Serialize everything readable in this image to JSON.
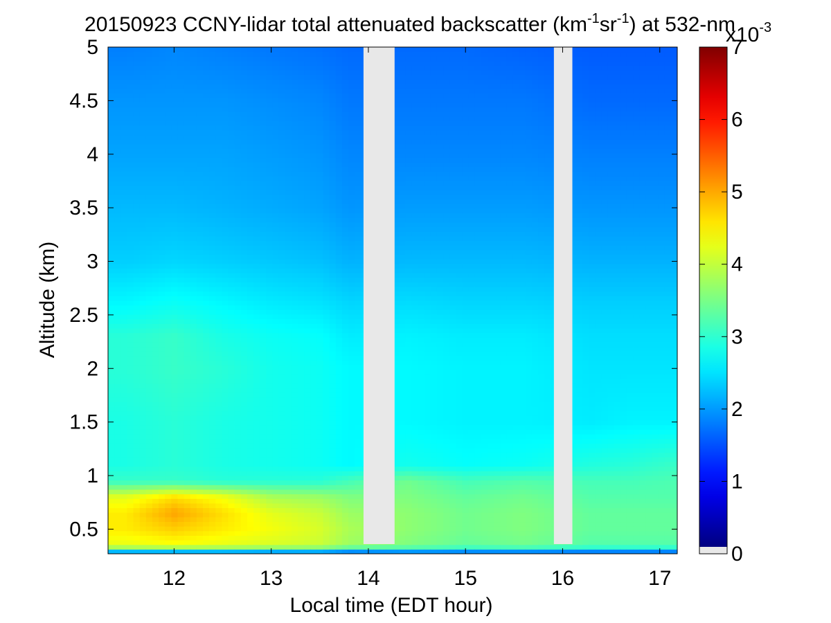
{
  "chart_data": {
    "type": "heatmap",
    "title_parts": {
      "prefix": "20150923 CCNY-lidar total attenuated backscatter (km",
      "sup1": "-1",
      "mid": "sr",
      "sup2": "-1",
      "suffix": ") at 532-nm"
    },
    "xlabel": "Local time (EDT hour)",
    "ylabel": "Altitude (km)",
    "xlim": [
      11.32,
      17.18
    ],
    "ylim": [
      0.27,
      5.0
    ],
    "xticks": [
      12,
      13,
      14,
      15,
      16,
      17
    ],
    "xtick_labels": [
      "12",
      "13",
      "14",
      "15",
      "16",
      "17"
    ],
    "yticks": [
      0.5,
      1,
      1.5,
      2,
      2.5,
      3,
      3.5,
      4,
      4.5,
      5
    ],
    "ytick_labels": [
      "0.5",
      "1",
      "1.5",
      "2",
      "2.5",
      "3",
      "3.5",
      "4",
      "4.5",
      "5"
    ],
    "data_gaps_hours": [
      [
        13.95,
        14.27
      ],
      [
        15.91,
        16.1
      ]
    ],
    "colorbar": {
      "colormap": "jet",
      "range": [
        0,
        7
      ],
      "ticks": [
        0,
        1,
        2,
        3,
        4,
        5,
        6,
        7
      ],
      "tick_labels": [
        "0",
        "1",
        "2",
        "3",
        "4",
        "5",
        "6",
        "7"
      ],
      "scale_prefix": "x10",
      "scale_exponent": "-3"
    },
    "profile_units": "x10^-3 km^-1 sr^-1",
    "altitude_levels_km": [
      0.27,
      0.3,
      0.35,
      0.5,
      0.65,
      0.8,
      0.95,
      1.1,
      1.5,
      2.0,
      2.3,
      2.6,
      3.0,
      3.5,
      4.0,
      4.5,
      5.0
    ],
    "sample_profiles": [
      {
        "time": 11.5,
        "backscatter": [
          0.0,
          3.0,
          4.2,
          4.5,
          4.5,
          4.2,
          3.0,
          2.8,
          2.8,
          2.9,
          2.9,
          2.6,
          2.3,
          2.15,
          2.0,
          1.9,
          1.75
        ]
      },
      {
        "time": 12.0,
        "backscatter": [
          0.0,
          3.0,
          4.3,
          4.7,
          5.0,
          4.6,
          3.0,
          2.9,
          2.9,
          3.0,
          3.0,
          2.7,
          2.35,
          2.15,
          2.0,
          1.9,
          1.8
        ]
      },
      {
        "time": 12.5,
        "backscatter": [
          0.0,
          3.0,
          4.2,
          4.5,
          4.6,
          4.3,
          2.9,
          2.8,
          2.8,
          2.9,
          2.8,
          2.6,
          2.3,
          2.1,
          2.0,
          1.9,
          1.75
        ]
      },
      {
        "time": 13.0,
        "backscatter": [
          0.0,
          2.9,
          4.1,
          4.3,
          4.2,
          3.8,
          2.9,
          2.75,
          2.75,
          2.75,
          2.7,
          2.5,
          2.25,
          2.05,
          1.95,
          1.85,
          1.7
        ]
      },
      {
        "time": 13.5,
        "backscatter": [
          0.0,
          2.9,
          4.0,
          4.1,
          4.0,
          3.7,
          2.9,
          2.7,
          2.7,
          2.7,
          2.65,
          2.45,
          2.2,
          2.0,
          1.9,
          1.8,
          1.65
        ]
      },
      {
        "time": 13.8,
        "backscatter": [
          0.0,
          2.6,
          3.7,
          3.8,
          3.7,
          3.5,
          3.1,
          2.6,
          2.6,
          2.6,
          2.5,
          2.35,
          2.1,
          1.9,
          1.8,
          1.7,
          1.6
        ]
      },
      {
        "time": 14.4,
        "backscatter": [
          0.0,
          2.7,
          3.5,
          3.6,
          3.6,
          3.5,
          3.4,
          2.75,
          2.6,
          2.6,
          2.55,
          2.4,
          2.15,
          1.95,
          1.8,
          1.7,
          1.6
        ]
      },
      {
        "time": 15.0,
        "backscatter": [
          0.0,
          2.6,
          3.3,
          3.4,
          3.4,
          3.3,
          3.1,
          2.65,
          2.55,
          2.55,
          2.5,
          2.35,
          2.15,
          1.95,
          1.8,
          1.7,
          1.6
        ]
      },
      {
        "time": 15.6,
        "backscatter": [
          0.0,
          2.6,
          3.4,
          3.5,
          3.5,
          3.4,
          3.2,
          2.7,
          2.55,
          2.55,
          2.5,
          2.35,
          2.15,
          1.95,
          1.8,
          1.7,
          1.55
        ]
      },
      {
        "time": 16.3,
        "backscatter": [
          0.0,
          2.5,
          3.2,
          3.3,
          3.3,
          3.2,
          3.1,
          2.85,
          2.5,
          2.45,
          2.4,
          2.3,
          2.1,
          1.9,
          1.75,
          1.6,
          1.5
        ]
      },
      {
        "time": 16.7,
        "backscatter": [
          0.0,
          2.5,
          3.2,
          3.3,
          3.3,
          3.2,
          3.1,
          2.9,
          2.55,
          2.45,
          2.4,
          2.3,
          2.1,
          1.9,
          1.75,
          1.6,
          1.5
        ]
      },
      {
        "time": 17.1,
        "backscatter": [
          0.0,
          2.5,
          3.2,
          3.3,
          3.3,
          3.2,
          3.15,
          3.0,
          2.55,
          2.45,
          2.4,
          2.3,
          2.1,
          1.9,
          1.75,
          1.6,
          1.5
        ]
      }
    ],
    "grid": false,
    "legend": "colorbar-right",
    "colors": {
      "gap": "#e8e8e8",
      "axis": "#000000",
      "background": "#ffffff"
    }
  }
}
